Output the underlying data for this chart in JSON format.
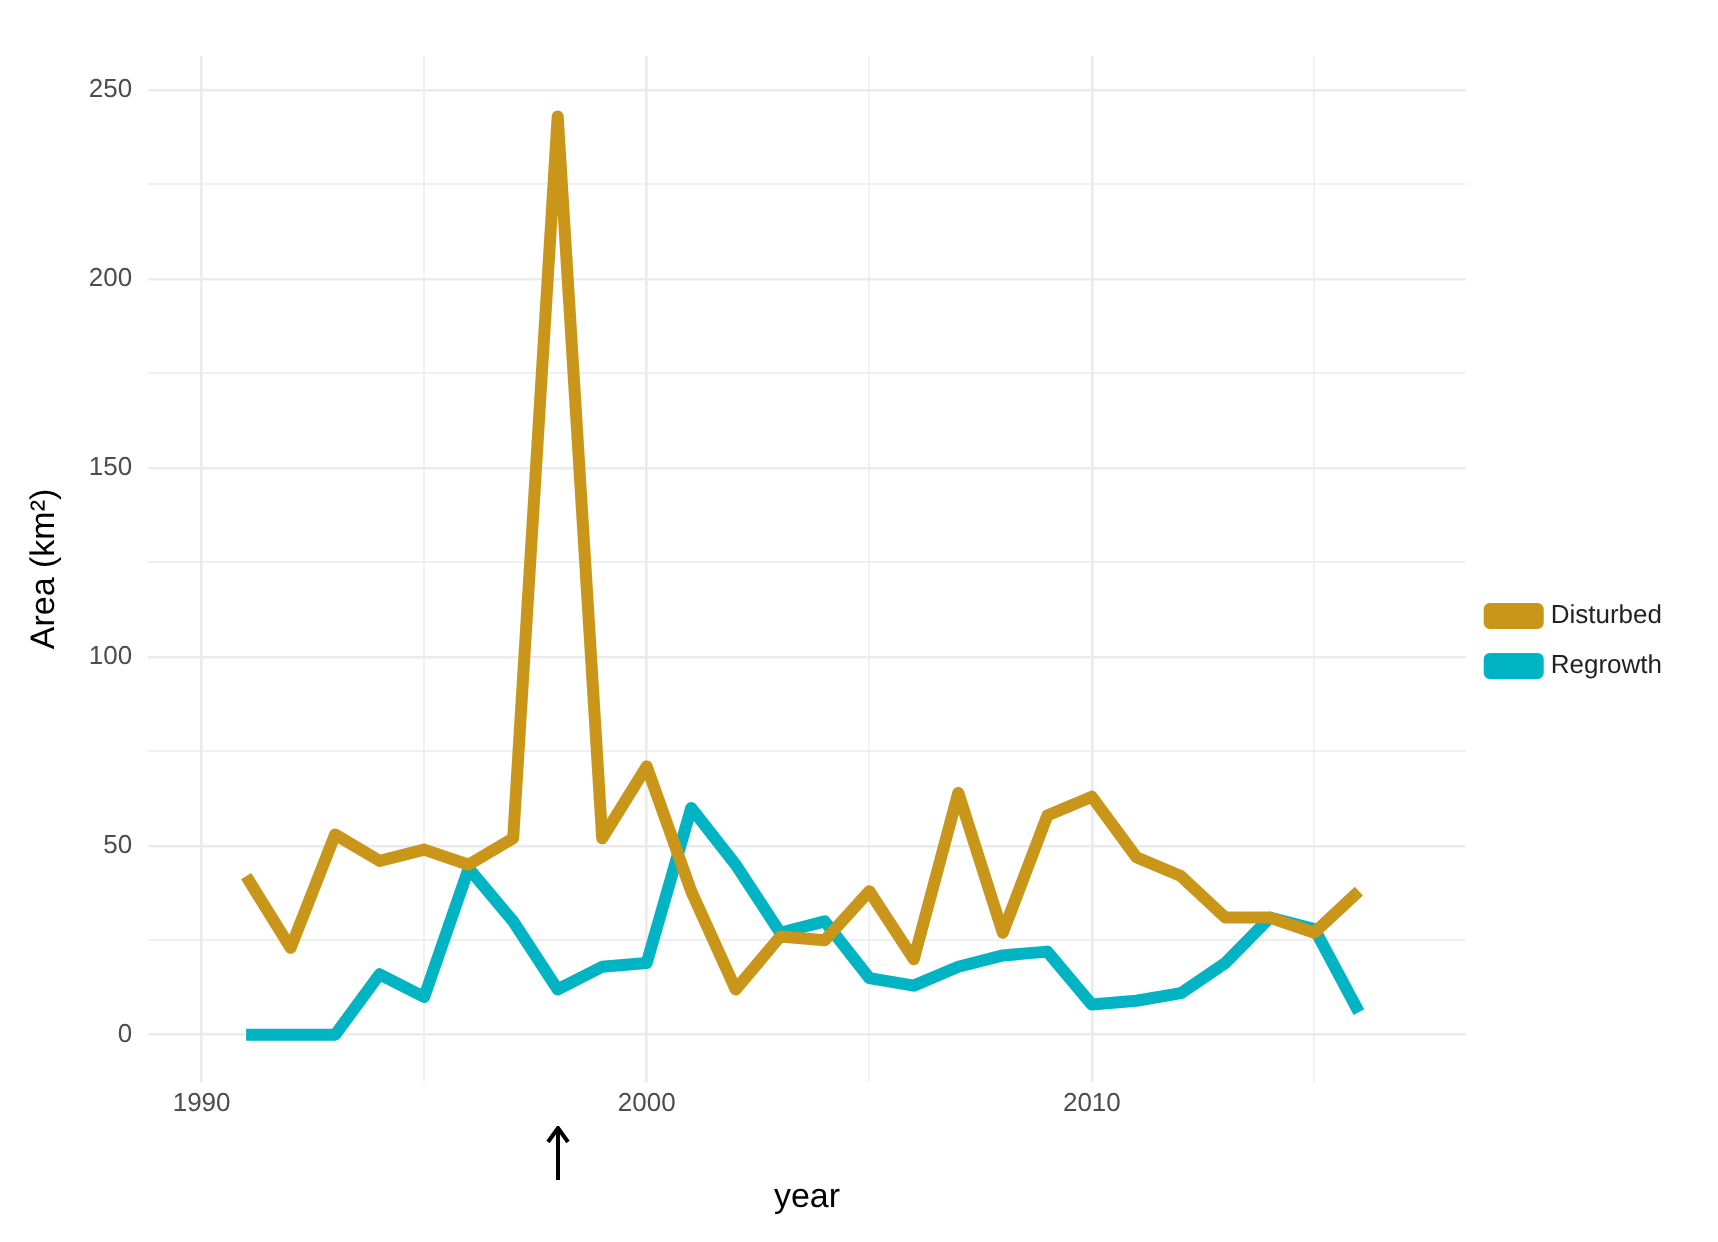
{
  "chart_data": {
    "type": "line",
    "xlabel": "year",
    "ylabel": "Area (km²)",
    "x": [
      1991,
      1992,
      1993,
      1994,
      1995,
      1996,
      1997,
      1998,
      1999,
      2000,
      2001,
      2002,
      2003,
      2004,
      2005,
      2006,
      2007,
      2008,
      2009,
      2010,
      2011,
      2012,
      2013,
      2014,
      2015,
      2016
    ],
    "series": [
      {
        "name": "Disturbed",
        "color": "#c9961a",
        "values": [
          42,
          23,
          53,
          46,
          49,
          45,
          52,
          243,
          52,
          71,
          38,
          12,
          26,
          25,
          38,
          20,
          64,
          27,
          58,
          63,
          47,
          42,
          31,
          31,
          27,
          38
        ]
      },
      {
        "name": "Regrowth",
        "color": "#00b4c4",
        "values": [
          0,
          0,
          0,
          16,
          10,
          44,
          30,
          12,
          18,
          19,
          60,
          45,
          27,
          30,
          15,
          13,
          18,
          21,
          22,
          8,
          9,
          11,
          19,
          31,
          28,
          6
        ]
      }
    ],
    "xlim": [
      1988.8,
      2018.4
    ],
    "xticks": [
      1990,
      {
        "value": 1995,
        "label": null
      },
      2000,
      {
        "value": 2005,
        "label": null
      },
      2010,
      {
        "value": 2015,
        "label": null
      }
    ],
    "ylim": [
      -12.5,
      259
    ],
    "yticks": [
      0,
      {
        "value": 25,
        "label": null
      },
      50,
      {
        "value": 75,
        "label": null
      },
      100,
      {
        "value": 125,
        "label": null
      },
      150,
      {
        "value": 175,
        "label": null
      },
      200,
      {
        "value": 225,
        "label": null
      },
      250
    ],
    "grid": true,
    "legend": "right",
    "marker": "none",
    "line_style": "solid"
  }
}
